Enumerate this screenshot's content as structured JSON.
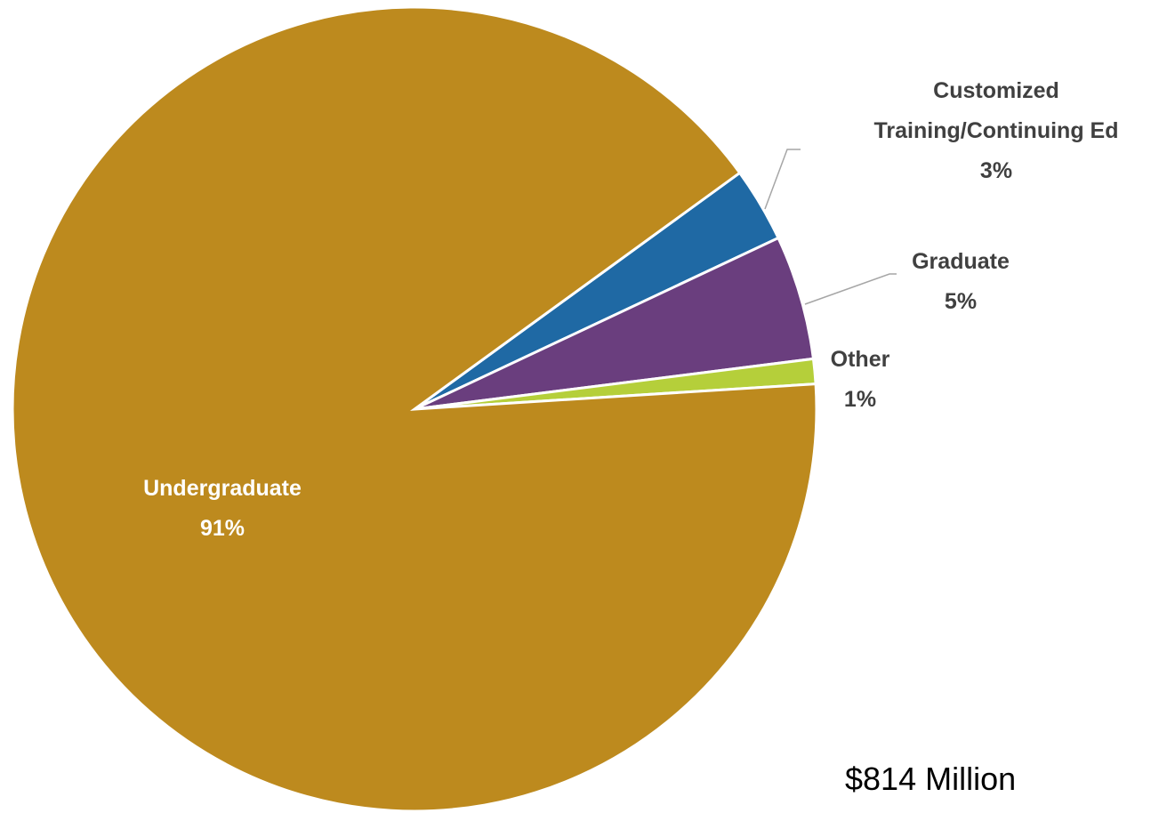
{
  "chart_data": {
    "type": "pie",
    "categories": [
      "Customized Training/Continuing Ed",
      "Graduate",
      "Other",
      "Undergraduate"
    ],
    "values": [
      3,
      5,
      1,
      91
    ],
    "value_labels": [
      "3%",
      "5%",
      "1%",
      "91%"
    ],
    "colors": [
      "#1f69a4",
      "#6a3e7e",
      "#b5cf3a",
      "#bd8a1e"
    ],
    "annotation": "$814 Million"
  }
}
